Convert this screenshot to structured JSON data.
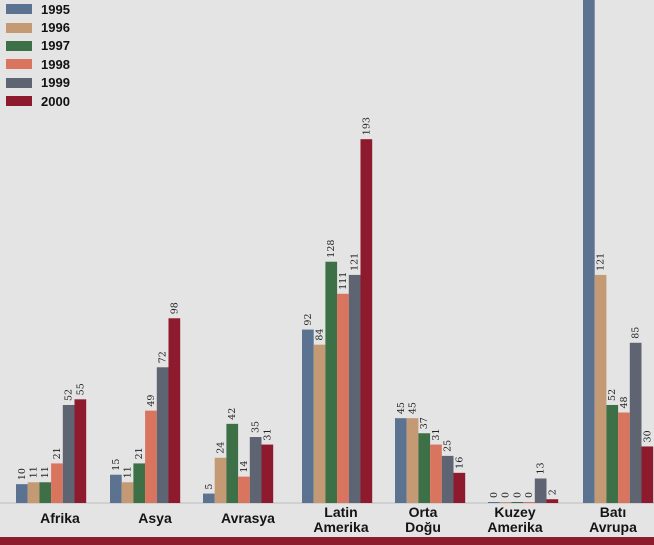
{
  "chart_data": {
    "type": "bar",
    "title": "",
    "xlabel": "",
    "ylabel": "",
    "ylim": [
      0,
      193
    ],
    "grid": false,
    "legend_position": "top-left",
    "categories": [
      [
        "Afrika"
      ],
      [
        "Asya"
      ],
      [
        "Avrasya"
      ],
      [
        "Latin",
        "Amerika"
      ],
      [
        "Orta",
        "Doğu"
      ],
      [
        "Kuzey",
        "Amerika"
      ],
      [
        "Batı",
        "Avrupa"
      ]
    ],
    "series": [
      {
        "name": "1995",
        "color": "#5b7390",
        "values": [
          10,
          15,
          5,
          92,
          45,
          0,
          null
        ]
      },
      {
        "name": "1996",
        "color": "#c49a74",
        "values": [
          11,
          11,
          24,
          84,
          45,
          0,
          121
        ]
      },
      {
        "name": "1997",
        "color": "#3e7048",
        "values": [
          11,
          21,
          42,
          128,
          37,
          0,
          52
        ]
      },
      {
        "name": "1998",
        "color": "#d9745f",
        "values": [
          21,
          49,
          14,
          111,
          31,
          0,
          48
        ]
      },
      {
        "name": "1999",
        "color": "#5f6472",
        "values": [
          52,
          72,
          35,
          121,
          25,
          13,
          85
        ]
      },
      {
        "name": "2000",
        "color": "#8e1a2d",
        "values": [
          55,
          98,
          31,
          193,
          16,
          2,
          30
        ]
      }
    ]
  }
}
